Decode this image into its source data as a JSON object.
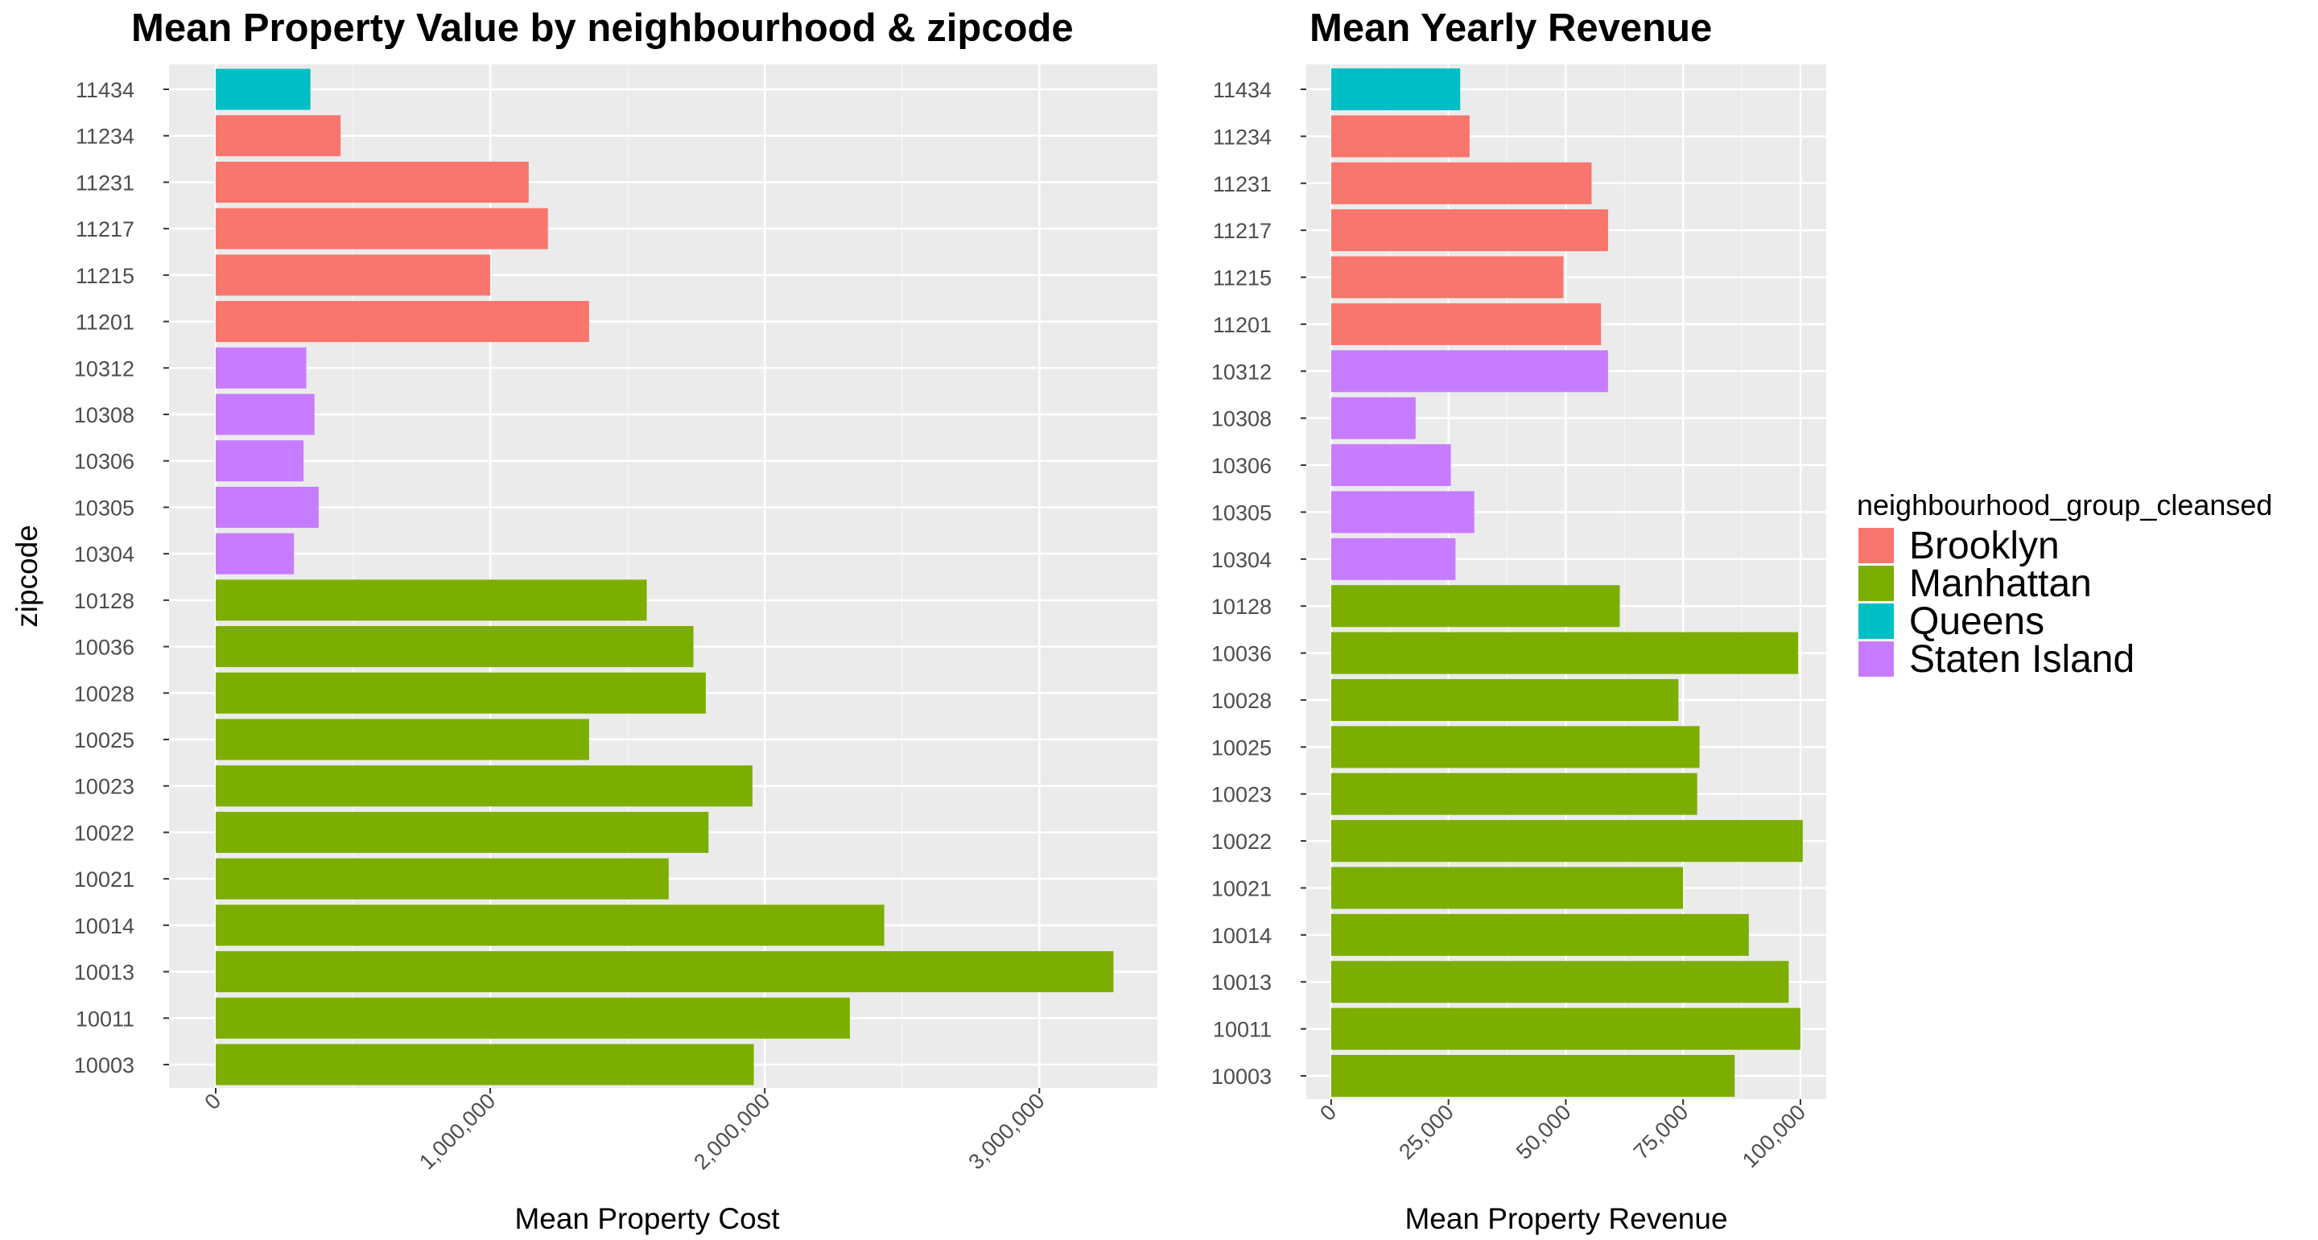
{
  "chart_data": [
    {
      "type": "bar",
      "orientation": "horizontal",
      "title": "Mean Property Value by neighbourhood & zipcode",
      "xlabel": "Mean Property Cost",
      "ylabel": "zipcode",
      "xlim": [
        -170000,
        3430000
      ],
      "xticks": [
        0,
        1000000,
        2000000,
        3000000
      ],
      "xtick_labels": [
        "0",
        "1,000,000",
        "2,000,000",
        "3,000,000"
      ],
      "grid": true,
      "categories": [
        "11434",
        "11234",
        "11231",
        "11217",
        "11215",
        "11201",
        "10312",
        "10308",
        "10306",
        "10305",
        "10304",
        "10128",
        "10036",
        "10028",
        "10025",
        "10023",
        "10022",
        "10021",
        "10014",
        "10013",
        "10011",
        "10003"
      ],
      "groups": [
        "Queens",
        "Brooklyn",
        "Brooklyn",
        "Brooklyn",
        "Brooklyn",
        "Brooklyn",
        "Staten Island",
        "Staten Island",
        "Staten Island",
        "Staten Island",
        "Staten Island",
        "Manhattan",
        "Manhattan",
        "Manhattan",
        "Manhattan",
        "Manhattan",
        "Manhattan",
        "Manhattan",
        "Manhattan",
        "Manhattan",
        "Manhattan",
        "Manhattan"
      ],
      "values": [
        345000,
        455000,
        1140000,
        1210000,
        1000000,
        1360000,
        330000,
        360000,
        320000,
        375000,
        285000,
        1570000,
        1740000,
        1785000,
        1360000,
        1955000,
        1795000,
        1650000,
        2435000,
        3270000,
        2310000,
        1960000
      ]
    },
    {
      "type": "bar",
      "orientation": "horizontal",
      "title": "Mean Yearly Revenue",
      "xlabel": "Mean Property Revenue",
      "ylabel": "",
      "xlim": [
        -5300,
        105500
      ],
      "xticks": [
        0,
        25000,
        50000,
        75000,
        100000
      ],
      "xtick_labels": [
        "0",
        "25,000",
        "50,000",
        "75,000",
        "100,000"
      ],
      "grid": true,
      "categories": [
        "11434",
        "11234",
        "11231",
        "11217",
        "11215",
        "11201",
        "10312",
        "10308",
        "10306",
        "10305",
        "10304",
        "10128",
        "10036",
        "10028",
        "10025",
        "10023",
        "10022",
        "10021",
        "10014",
        "10013",
        "10011",
        "10003"
      ],
      "groups": [
        "Queens",
        "Brooklyn",
        "Brooklyn",
        "Brooklyn",
        "Brooklyn",
        "Brooklyn",
        "Staten Island",
        "Staten Island",
        "Staten Island",
        "Staten Island",
        "Staten Island",
        "Manhattan",
        "Manhattan",
        "Manhattan",
        "Manhattan",
        "Manhattan",
        "Manhattan",
        "Manhattan",
        "Manhattan",
        "Manhattan",
        "Manhattan",
        "Manhattan"
      ],
      "values": [
        27500,
        29500,
        55500,
        59000,
        49500,
        57500,
        59000,
        18000,
        25500,
        30500,
        26500,
        61500,
        99500,
        74000,
        78500,
        78000,
        100500,
        75000,
        89000,
        97500,
        100000,
        86000
      ]
    }
  ],
  "legend": {
    "title": "neighbourhood_group_cleansed",
    "placement": "right",
    "items": [
      {
        "label": "Brooklyn",
        "color": "#F8766D"
      },
      {
        "label": "Manhattan",
        "color": "#7CAE00"
      },
      {
        "label": "Queens",
        "color": "#00BFC4"
      },
      {
        "label": "Staten Island",
        "color": "#C77CFF"
      }
    ]
  },
  "colors": {
    "panel_background": "#EBEBEB",
    "grid_major": "#FFFFFF",
    "grid_minor": "#F5F5F5",
    "tick_text": "#4D4D4D",
    "tick_mark": "#333333"
  }
}
